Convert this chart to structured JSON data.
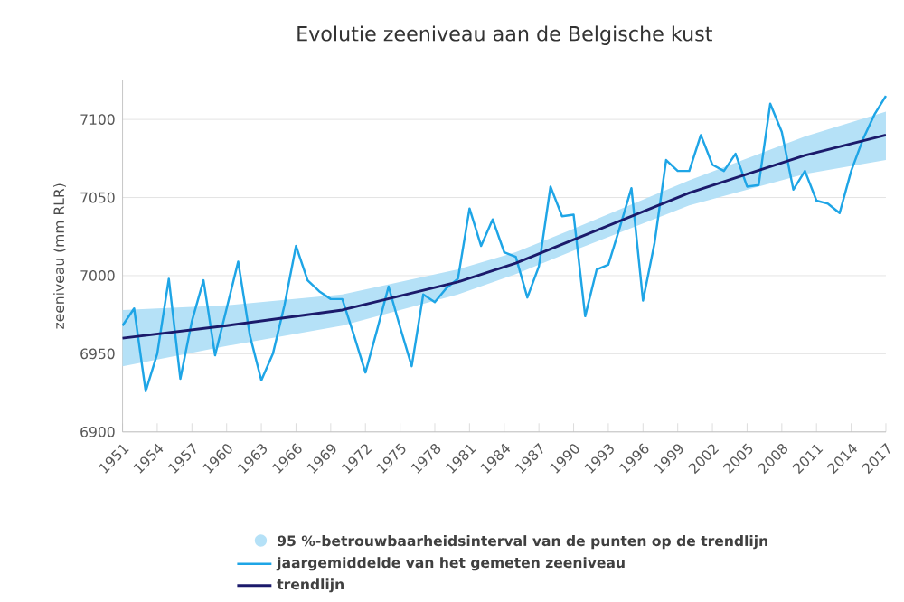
{
  "chart_data": {
    "type": "line",
    "title": "Evolutie zeeniveau aan de Belgische kust",
    "ylabel": "zeeniveau (mm RLR)",
    "annotations": [
      "95 %-betrouwbaarheidsinterval van de punten op de trendlijn"
    ],
    "xlim": [
      1951,
      2017
    ],
    "xticks": [
      1951,
      1954,
      1957,
      1960,
      1963,
      1966,
      1969,
      1972,
      1975,
      1978,
      1981,
      1984,
      1987,
      1990,
      1993,
      1996,
      1999,
      2002,
      2005,
      2008,
      2011,
      2014,
      2017
    ],
    "ylim": [
      6900,
      7125
    ],
    "yticks": [
      6900,
      6950,
      7000,
      7050,
      7100
    ],
    "grid": "y",
    "legend": "bottom",
    "marker": "none",
    "series": [
      {
        "name": "jaargemiddelde van het gemeten zeeniveau",
        "color": "#1ea5e6",
        "x": [
          1951,
          1952,
          1953,
          1954,
          1955,
          1956,
          1957,
          1958,
          1959,
          1960,
          1961,
          1962,
          1963,
          1964,
          1965,
          1966,
          1967,
          1968,
          1969,
          1970,
          1971,
          1972,
          1973,
          1974,
          1975,
          1976,
          1977,
          1978,
          1979,
          1980,
          1981,
          1982,
          1983,
          1984,
          1985,
          1986,
          1987,
          1988,
          1989,
          1990,
          1991,
          1992,
          1993,
          1994,
          1995,
          1996,
          1997,
          1998,
          1999,
          2000,
          2001,
          2002,
          2003,
          2004,
          2005,
          2006,
          2007,
          2008,
          2009,
          2010,
          2011,
          2012,
          2013,
          2014,
          2015,
          2016,
          2017
        ],
        "values": [
          6968,
          6979,
          6926,
          6950,
          6998,
          6934,
          6971,
          6997,
          6949,
          6979,
          7009,
          6962,
          6933,
          6950,
          6981,
          7019,
          6997,
          6990,
          6985,
          6985,
          6962,
          6938,
          6965,
          6993,
          6967,
          6942,
          6988,
          6983,
          6992,
          6998,
          7043,
          7019,
          7036,
          7015,
          7012,
          6986,
          7006,
          7057,
          7038,
          7039,
          6974,
          7004,
          7007,
          7031,
          7056,
          6984,
          7021,
          7074,
          7067,
          7067,
          7090,
          7071,
          7067,
          7078,
          7057,
          7058,
          7110,
          7092,
          7055,
          7067,
          7048,
          7046,
          7040,
          7067,
          7087,
          7103,
          7115
        ]
      },
      {
        "name": "trendlijn",
        "color": "#1b1a6b",
        "x": [
          1951,
          1960,
          1970,
          1980,
          1985,
          1990,
          2000,
          2010,
          2017
        ],
        "values": [
          6960,
          6968,
          6978,
          6996,
          7008,
          7023,
          7053,
          7077,
          7090
        ],
        "lower": [
          6942,
          6955,
          6968,
          6988,
          7001,
          7016,
          7045,
          7065,
          7074
        ],
        "upper": [
          6978,
          6981,
          6988,
          7004,
          7015,
          7030,
          7061,
          7089,
          7105
        ]
      }
    ]
  }
}
